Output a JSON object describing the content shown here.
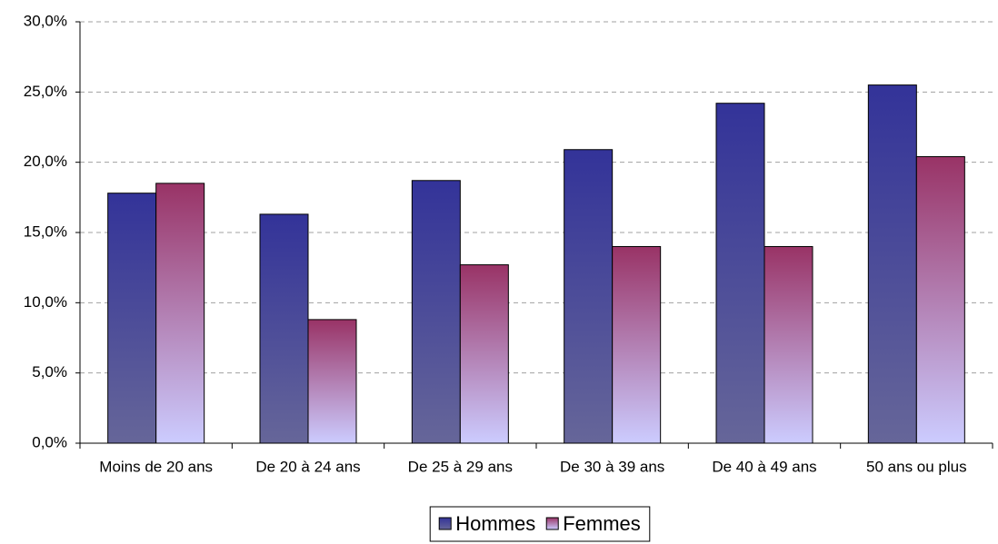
{
  "chart_data": {
    "type": "bar",
    "categories": [
      "Moins de 20 ans",
      "De 20 à 24 ans",
      "De 25 à 29 ans",
      "De 30 à 39 ans",
      "De 40 à 49 ans",
      "50 ans ou plus"
    ],
    "series": [
      {
        "name": "Hommes",
        "color": "#333399",
        "gradient_to": "#666699",
        "values": [
          17.8,
          16.3,
          18.7,
          20.9,
          24.2,
          25.5
        ]
      },
      {
        "name": "Femmes",
        "color": "#993366",
        "gradient_to": "#ccccff",
        "values": [
          18.5,
          8.8,
          12.7,
          14.0,
          14.0,
          20.4
        ]
      }
    ],
    "ylim": [
      0,
      30
    ],
    "yticks": [
      {
        "value": 0,
        "label": "0,0%"
      },
      {
        "value": 5,
        "label": "5,0%"
      },
      {
        "value": 10,
        "label": "10,0%"
      },
      {
        "value": 15,
        "label": "15,0%"
      },
      {
        "value": 20,
        "label": "20,0%"
      },
      {
        "value": 25,
        "label": "25,0%"
      },
      {
        "value": 30,
        "label": "30,0%"
      }
    ],
    "grid": true,
    "legend": "bottom"
  }
}
